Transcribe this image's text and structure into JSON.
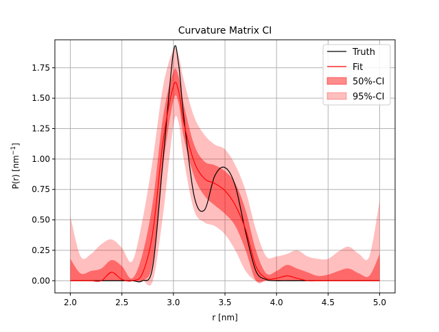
{
  "chart_data": {
    "type": "area",
    "title": "Curvature Matrix CI",
    "xlabel": "r [nm]",
    "ylabel_main": "P(r) [nm",
    "ylabel_sup": "−1",
    "ylabel_close": "]",
    "xlim": [
      1.85,
      5.15
    ],
    "ylim": [
      -0.1,
      1.98
    ],
    "grid": true,
    "legend_position": "upper-right",
    "x_ticks": [
      {
        "v": 2.0,
        "label": "2.0"
      },
      {
        "v": 2.5,
        "label": "2.5"
      },
      {
        "v": 3.0,
        "label": "3.0"
      },
      {
        "v": 3.5,
        "label": "3.5"
      },
      {
        "v": 4.0,
        "label": "4.0"
      },
      {
        "v": 4.5,
        "label": "4.5"
      },
      {
        "v": 5.0,
        "label": "5.0"
      }
    ],
    "y_ticks": [
      {
        "v": 0.0,
        "label": "0.00"
      },
      {
        "v": 0.25,
        "label": "0.25"
      },
      {
        "v": 0.5,
        "label": "0.50"
      },
      {
        "v": 0.75,
        "label": "0.75"
      },
      {
        "v": 1.0,
        "label": "1.00"
      },
      {
        "v": 1.25,
        "label": "1.25"
      },
      {
        "v": 1.5,
        "label": "1.50"
      },
      {
        "v": 1.75,
        "label": "1.75"
      }
    ],
    "x": [
      2.0,
      2.1,
      2.2,
      2.3,
      2.4,
      2.5,
      2.6,
      2.7,
      2.8,
      2.9,
      3.0,
      3.05,
      3.1,
      3.2,
      3.3,
      3.4,
      3.5,
      3.6,
      3.7,
      3.8,
      3.9,
      4.0,
      4.1,
      4.2,
      4.3,
      4.4,
      4.5,
      4.6,
      4.7,
      4.8,
      4.9,
      5.0
    ],
    "series": [
      {
        "name": "Truth",
        "color": "#000000",
        "type": "line",
        "values": [
          0,
          0,
          0,
          0,
          0,
          0,
          0,
          0,
          0.12,
          1.0,
          1.88,
          1.78,
          1.35,
          0.7,
          0.58,
          0.86,
          0.93,
          0.78,
          0.4,
          0.08,
          0.01,
          0,
          0,
          0,
          0,
          0,
          0,
          0,
          0,
          0,
          0,
          0
        ]
      },
      {
        "name": "Fit",
        "color": "#ff0000",
        "type": "line",
        "values": [
          0,
          0,
          0,
          0,
          0.07,
          0.01,
          0,
          0.06,
          0.4,
          1.15,
          1.6,
          1.56,
          1.3,
          0.98,
          0.84,
          0.8,
          0.74,
          0.62,
          0.42,
          0.12,
          0.02,
          0.02,
          0.04,
          0.02,
          0.0,
          0,
          0,
          0,
          0,
          0,
          0,
          0
        ]
      },
      {
        "name": "50%-CI",
        "color": "#ff7f7f",
        "type": "band",
        "lower": [
          0,
          0,
          0,
          0,
          0,
          0,
          0,
          0,
          0.15,
          0.95,
          1.48,
          1.46,
          1.18,
          0.86,
          0.7,
          0.62,
          0.55,
          0.45,
          0.25,
          0,
          0,
          0,
          0,
          0,
          0,
          0,
          0,
          0,
          0,
          0,
          0,
          0
        ],
        "upper": [
          0.18,
          0.06,
          0.08,
          0.1,
          0.17,
          0.12,
          0.02,
          0.22,
          0.65,
          1.35,
          1.72,
          1.68,
          1.45,
          1.12,
          0.98,
          0.95,
          0.9,
          0.8,
          0.58,
          0.25,
          0.06,
          0.08,
          0.13,
          0.1,
          0.07,
          0.04,
          0.05,
          0.08,
          0.1,
          0.06,
          0.04,
          0.22
        ]
      },
      {
        "name": "95%-CI",
        "color": "#ffb3b3",
        "type": "band",
        "lower": [
          0,
          0,
          0,
          0,
          0,
          0,
          0,
          0,
          0,
          0.55,
          1.28,
          1.3,
          1.0,
          0.58,
          0.48,
          0.45,
          0.38,
          0.25,
          0.08,
          0,
          0,
          0,
          0,
          0,
          0,
          0,
          0,
          0,
          0,
          0,
          0,
          0
        ],
        "upper": [
          0.53,
          0.2,
          0.22,
          0.3,
          0.34,
          0.27,
          0.16,
          0.5,
          1.0,
          1.6,
          1.9,
          1.85,
          1.65,
          1.35,
          1.2,
          1.12,
          1.08,
          0.95,
          0.74,
          0.42,
          0.2,
          0.2,
          0.22,
          0.25,
          0.2,
          0.18,
          0.18,
          0.24,
          0.28,
          0.22,
          0.2,
          0.66
        ]
      }
    ]
  }
}
